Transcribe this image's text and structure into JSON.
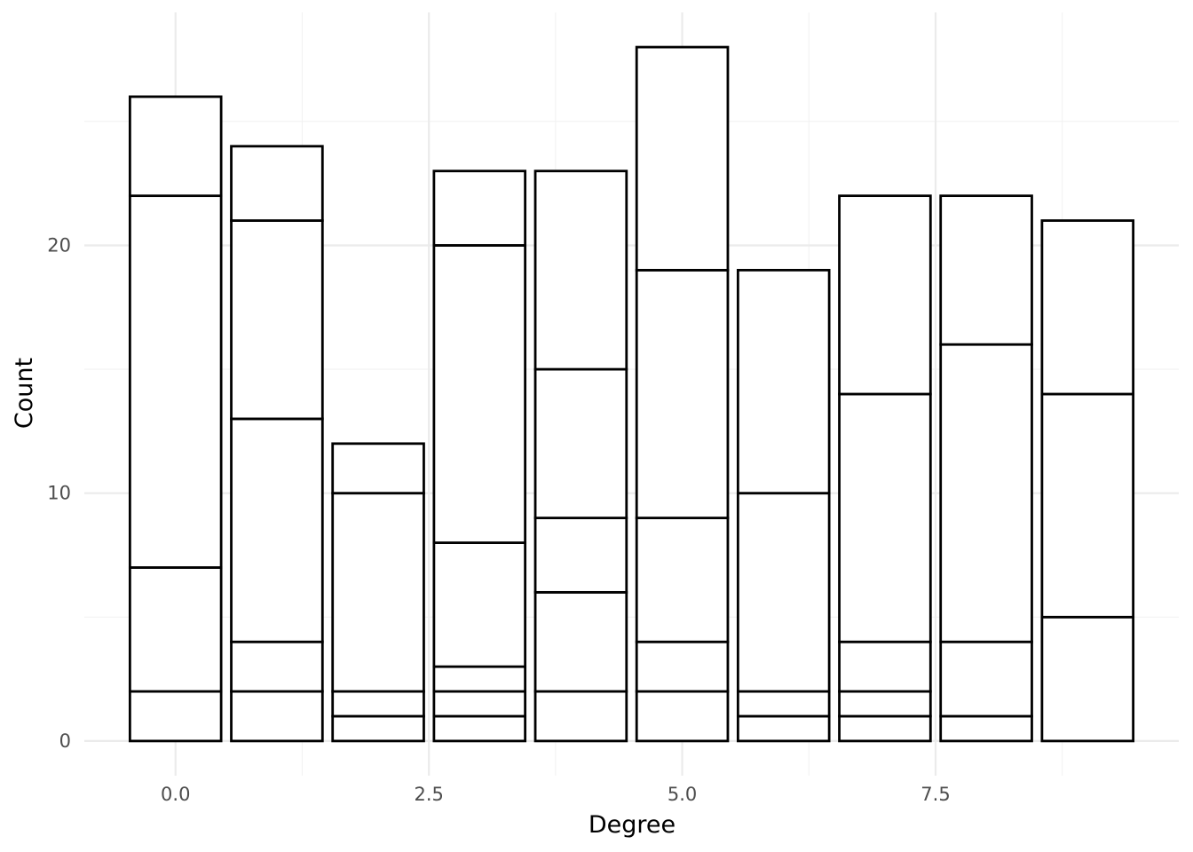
{
  "chart_data": {
    "type": "bar",
    "stacked": true,
    "title": "",
    "xlabel": "Degree",
    "ylabel": "Count",
    "x": [
      0,
      1,
      2,
      3,
      4,
      5,
      6,
      7,
      8,
      9
    ],
    "stacks": [
      [
        2,
        5,
        15,
        4
      ],
      [
        2,
        2,
        9,
        8,
        3
      ],
      [
        1,
        1,
        8,
        2
      ],
      [
        1,
        1,
        1,
        5,
        12,
        3
      ],
      [
        2,
        4,
        3,
        6,
        8
      ],
      [
        2,
        2,
        5,
        10,
        9
      ],
      [
        1,
        1,
        8,
        9
      ],
      [
        1,
        1,
        2,
        10,
        8
      ],
      [
        1,
        3,
        12,
        6
      ],
      [
        5,
        9,
        7
      ]
    ],
    "xlim": [
      -0.9,
      9.9
    ],
    "ylim": [
      -1.4,
      29.4
    ],
    "x_ticks": [
      0,
      2.5,
      5,
      7.5
    ],
    "x_tick_labels": [
      "0.0",
      "2.5",
      "5.0",
      "7.5"
    ],
    "y_ticks": [
      0,
      10,
      20
    ],
    "y_tick_labels": [
      "0",
      "10",
      "20"
    ],
    "grid": true,
    "bar_fill": "#ffffff",
    "bar_stroke": "#000000"
  }
}
